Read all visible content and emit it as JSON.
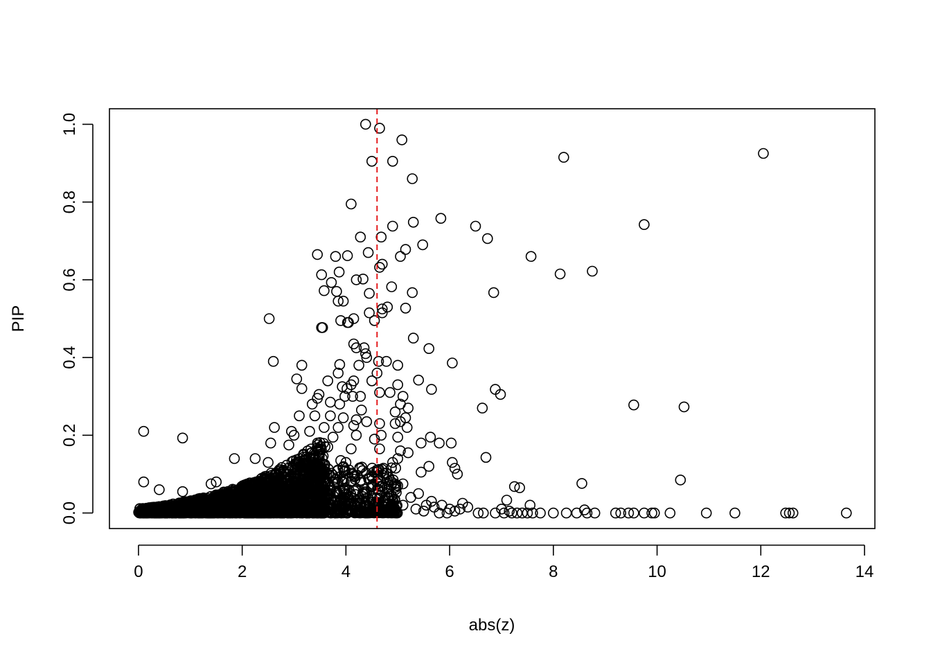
{
  "chart_data": {
    "type": "scatter",
    "title": "",
    "xlabel": "abs(z)",
    "ylabel": "PIP",
    "xlim": [
      -0.56,
      14.2
    ],
    "ylim": [
      -0.04,
      1.04
    ],
    "x_ticks": [
      0,
      2,
      4,
      6,
      8,
      10,
      12,
      14
    ],
    "y_ticks": [
      0.0,
      0.2,
      0.4,
      0.6,
      0.8,
      1.0
    ],
    "x_tick_labels": [
      "0",
      "2",
      "4",
      "6",
      "8",
      "10",
      "12",
      "14"
    ],
    "y_tick_labels": [
      "0.0",
      "0.2",
      "0.4",
      "0.6",
      "0.8",
      "1.0"
    ],
    "grid": false,
    "marker": "open-circle",
    "point_color": "#000000",
    "reference_line": {
      "orientation": "vertical",
      "x": 4.6,
      "color": "#e41a1c",
      "style": "dashed"
    },
    "points": [
      [
        4.38,
        1.0
      ],
      [
        4.65,
        0.99
      ],
      [
        5.08,
        0.96
      ],
      [
        4.5,
        0.905
      ],
      [
        4.9,
        0.905
      ],
      [
        12.05,
        0.925
      ],
      [
        8.2,
        0.915
      ],
      [
        5.28,
        0.86
      ],
      [
        4.1,
        0.795
      ],
      [
        5.83,
        0.758
      ],
      [
        5.3,
        0.748
      ],
      [
        4.9,
        0.738
      ],
      [
        6.5,
        0.738
      ],
      [
        9.75,
        0.742
      ],
      [
        4.28,
        0.71
      ],
      [
        4.68,
        0.71
      ],
      [
        6.73,
        0.706
      ],
      [
        5.48,
        0.69
      ],
      [
        5.15,
        0.678
      ],
      [
        3.45,
        0.665
      ],
      [
        4.03,
        0.662
      ],
      [
        4.43,
        0.67
      ],
      [
        7.57,
        0.66
      ],
      [
        3.8,
        0.66
      ],
      [
        3.87,
        0.62
      ],
      [
        4.88,
        0.582
      ],
      [
        4.2,
        0.6
      ],
      [
        4.33,
        0.602
      ],
      [
        5.05,
        0.66
      ],
      [
        4.7,
        0.64
      ],
      [
        4.65,
        0.632
      ],
      [
        3.53,
        0.613
      ],
      [
        8.13,
        0.615
      ],
      [
        8.75,
        0.622
      ],
      [
        3.72,
        0.593
      ],
      [
        3.58,
        0.572
      ],
      [
        3.82,
        0.57
      ],
      [
        4.45,
        0.565
      ],
      [
        5.28,
        0.567
      ],
      [
        6.85,
        0.567
      ],
      [
        3.85,
        0.545
      ],
      [
        3.95,
        0.545
      ],
      [
        4.7,
        0.525
      ],
      [
        4.8,
        0.53
      ],
      [
        5.15,
        0.527
      ],
      [
        4.7,
        0.515
      ],
      [
        4.45,
        0.515
      ],
      [
        4.55,
        0.495
      ],
      [
        3.9,
        0.495
      ],
      [
        2.52,
        0.5
      ],
      [
        4.03,
        0.49
      ],
      [
        4.05,
        0.49
      ],
      [
        4.15,
        0.5
      ],
      [
        3.53,
        0.477
      ],
      [
        3.55,
        0.477
      ],
      [
        5.3,
        0.45
      ],
      [
        4.15,
        0.435
      ],
      [
        4.2,
        0.425
      ],
      [
        4.35,
        0.425
      ],
      [
        4.38,
        0.41
      ],
      [
        4.4,
        0.4
      ],
      [
        5.6,
        0.423
      ],
      [
        4.63,
        0.39
      ],
      [
        4.78,
        0.39
      ],
      [
        5.0,
        0.38
      ],
      [
        2.6,
        0.39
      ],
      [
        3.15,
        0.38
      ],
      [
        3.88,
        0.382
      ],
      [
        4.25,
        0.38
      ],
      [
        6.05,
        0.386
      ],
      [
        4.6,
        0.36
      ],
      [
        5.4,
        0.342
      ],
      [
        3.05,
        0.345
      ],
      [
        3.65,
        0.34
      ],
      [
        3.85,
        0.36
      ],
      [
        4.15,
        0.34
      ],
      [
        4.5,
        0.34
      ],
      [
        5.0,
        0.33
      ],
      [
        3.15,
        0.32
      ],
      [
        4.1,
        0.33
      ],
      [
        3.93,
        0.325
      ],
      [
        4.02,
        0.32
      ],
      [
        5.65,
        0.318
      ],
      [
        6.88,
        0.318
      ],
      [
        4.65,
        0.31
      ],
      [
        4.85,
        0.31
      ],
      [
        3.98,
        0.3
      ],
      [
        4.13,
        0.3
      ],
      [
        5.1,
        0.3
      ],
      [
        6.98,
        0.305
      ],
      [
        3.45,
        0.295
      ],
      [
        3.48,
        0.305
      ],
      [
        4.28,
        0.3
      ],
      [
        3.35,
        0.28
      ],
      [
        3.7,
        0.285
      ],
      [
        3.88,
        0.28
      ],
      [
        5.05,
        0.28
      ],
      [
        6.63,
        0.27
      ],
      [
        9.55,
        0.278
      ],
      [
        10.52,
        0.273
      ],
      [
        4.3,
        0.265
      ],
      [
        4.95,
        0.26
      ],
      [
        5.2,
        0.27
      ],
      [
        3.1,
        0.25
      ],
      [
        3.4,
        0.25
      ],
      [
        3.7,
        0.25
      ],
      [
        3.95,
        0.245
      ],
      [
        4.2,
        0.24
      ],
      [
        4.4,
        0.235
      ],
      [
        4.65,
        0.23
      ],
      [
        4.95,
        0.23
      ],
      [
        5.05,
        0.235
      ],
      [
        5.15,
        0.245
      ],
      [
        2.62,
        0.22
      ],
      [
        2.95,
        0.21
      ],
      [
        3.3,
        0.21
      ],
      [
        3.58,
        0.22
      ],
      [
        3.85,
        0.22
      ],
      [
        4.15,
        0.225
      ],
      [
        5.18,
        0.22
      ],
      [
        0.1,
        0.21
      ],
      [
        0.85,
        0.193
      ],
      [
        3.0,
        0.2
      ],
      [
        3.75,
        0.195
      ],
      [
        4.2,
        0.2
      ],
      [
        4.55,
        0.19
      ],
      [
        4.68,
        0.2
      ],
      [
        5.0,
        0.195
      ],
      [
        5.63,
        0.195
      ],
      [
        6.03,
        0.18
      ],
      [
        2.55,
        0.18
      ],
      [
        2.9,
        0.175
      ],
      [
        3.45,
        0.18
      ],
      [
        3.65,
        0.17
      ],
      [
        4.1,
        0.165
      ],
      [
        4.65,
        0.165
      ],
      [
        5.45,
        0.18
      ],
      [
        5.8,
        0.18
      ],
      [
        5.05,
        0.16
      ],
      [
        5.2,
        0.155
      ],
      [
        5.6,
        0.12
      ],
      [
        6.05,
        0.13
      ],
      [
        6.1,
        0.115
      ],
      [
        6.15,
        0.1
      ],
      [
        6.7,
        0.143
      ],
      [
        4.6,
        0.105
      ],
      [
        4.9,
        0.13
      ],
      [
        5.0,
        0.14
      ],
      [
        1.85,
        0.14
      ],
      [
        2.25,
        0.14
      ],
      [
        2.5,
        0.13
      ],
      [
        3.25,
        0.13
      ],
      [
        3.9,
        0.135
      ],
      [
        4.0,
        0.13
      ],
      [
        0.1,
        0.08
      ],
      [
        0.4,
        0.06
      ],
      [
        0.85,
        0.055
      ],
      [
        1.4,
        0.075
      ],
      [
        1.5,
        0.08
      ],
      [
        5.45,
        0.105
      ],
      [
        7.25,
        0.068
      ],
      [
        7.35,
        0.065
      ],
      [
        8.55,
        0.076
      ],
      [
        10.45,
        0.085
      ],
      [
        7.1,
        0.033
      ],
      [
        5.1,
        0.075
      ],
      [
        5.0,
        0.07
      ],
      [
        4.62,
        0.075
      ],
      [
        5.65,
        0.03
      ],
      [
        6.25,
        0.025
      ],
      [
        7.55,
        0.02
      ],
      [
        8.6,
        0.008
      ],
      [
        6.55,
        0.0
      ],
      [
        6.65,
        0.0
      ],
      [
        6.88,
        0.0
      ],
      [
        7.05,
        0.0
      ],
      [
        7.2,
        0.0
      ],
      [
        7.3,
        0.0
      ],
      [
        7.4,
        0.0
      ],
      [
        7.5,
        0.0
      ],
      [
        7.6,
        0.0
      ],
      [
        7.75,
        0.0
      ],
      [
        8.0,
        0.0
      ],
      [
        8.25,
        0.0
      ],
      [
        8.45,
        0.0
      ],
      [
        8.65,
        0.0
      ],
      [
        8.8,
        0.0
      ],
      [
        9.2,
        0.0
      ],
      [
        9.3,
        0.0
      ],
      [
        9.45,
        0.0
      ],
      [
        9.55,
        0.0
      ],
      [
        9.75,
        0.0
      ],
      [
        9.9,
        0.0
      ],
      [
        9.95,
        0.0
      ],
      [
        10.25,
        0.0
      ],
      [
        10.95,
        0.0
      ],
      [
        11.5,
        0.0
      ],
      [
        12.48,
        0.0
      ],
      [
        12.55,
        0.0
      ],
      [
        12.62,
        0.0
      ],
      [
        13.65,
        0.0
      ],
      [
        5.8,
        0.0
      ],
      [
        5.95,
        0.0
      ],
      [
        6.1,
        0.005
      ],
      [
        6.2,
        0.01
      ],
      [
        6.35,
        0.015
      ],
      [
        7.0,
        0.01
      ],
      [
        7.15,
        0.005
      ],
      [
        5.5,
        0.005
      ],
      [
        5.35,
        0.01
      ],
      [
        4.95,
        0.01
      ],
      [
        4.75,
        0.015
      ],
      [
        4.35,
        0.02
      ],
      [
        4.05,
        0.025
      ],
      [
        3.8,
        0.03
      ],
      [
        3.55,
        0.035
      ],
      [
        3.3,
        0.04
      ],
      [
        3.05,
        0.035
      ],
      [
        2.8,
        0.03
      ],
      [
        2.55,
        0.025
      ],
      [
        2.3,
        0.02
      ],
      [
        2.05,
        0.015
      ],
      [
        1.8,
        0.01
      ],
      [
        1.55,
        0.01
      ],
      [
        1.3,
        0.005
      ],
      [
        1.05,
        0.005
      ],
      [
        0.8,
        0.005
      ],
      [
        0.55,
        0.0
      ],
      [
        0.3,
        0.0
      ],
      [
        0.05,
        0.0
      ],
      [
        3.45,
        0.06
      ],
      [
        3.6,
        0.08
      ],
      [
        3.7,
        0.05
      ],
      [
        3.95,
        0.06
      ],
      [
        4.1,
        0.08
      ],
      [
        4.2,
        0.06
      ],
      [
        4.4,
        0.05
      ],
      [
        4.5,
        0.07
      ],
      [
        4.7,
        0.055
      ],
      [
        4.8,
        0.04
      ],
      [
        4.9,
        0.03
      ],
      [
        5.1,
        0.02
      ],
      [
        5.25,
        0.04
      ],
      [
        5.4,
        0.05
      ],
      [
        5.55,
        0.02
      ],
      [
        5.7,
        0.015
      ],
      [
        5.85,
        0.02
      ],
      [
        6.0,
        0.01
      ]
    ]
  }
}
